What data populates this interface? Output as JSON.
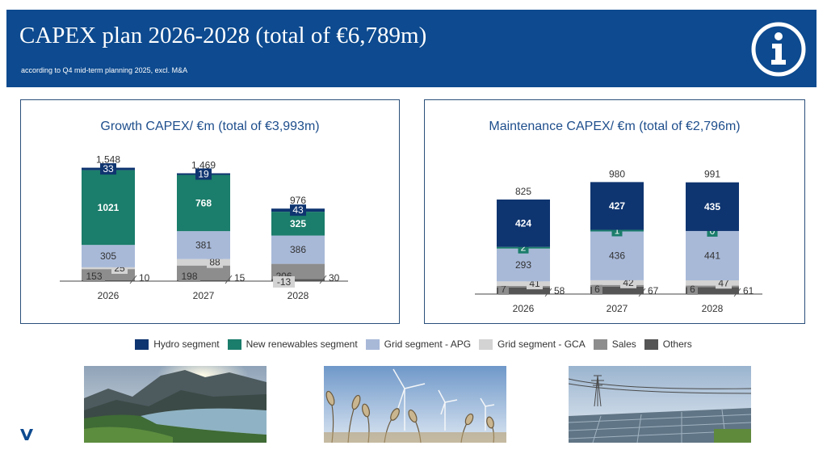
{
  "header": {
    "title": "CAPEX plan 2026-2028 (total of €6,789m)",
    "subtitle": "according to Q4 mid-term planning 2025, excl. M&A"
  },
  "colors": {
    "hydro": "#0f3570",
    "new_renewables": "#1b7d6b",
    "grid_apg": "#a8b9d8",
    "grid_gca": "#d3d3d3",
    "sales": "#8d8d8d",
    "others": "#555555",
    "brand_blue": "#0d4a8f"
  },
  "legend": [
    {
      "label": "Hydro segment",
      "color_key": "hydro"
    },
    {
      "label": "New renewables segment",
      "color_key": "new_renewables"
    },
    {
      "label": "Grid segment - APG",
      "color_key": "grid_apg"
    },
    {
      "label": "Grid segment - GCA",
      "color_key": "grid_gca"
    },
    {
      "label": "Sales",
      "color_key": "sales"
    },
    {
      "label": "Others",
      "color_key": "others"
    }
  ],
  "chart_data": [
    {
      "type": "bar",
      "stacked": true,
      "title": "Growth CAPEX/ €m (total of €3,993m)",
      "categories": [
        "2026",
        "2027",
        "2028"
      ],
      "totals": [
        1548,
        1469,
        976
      ],
      "series": [
        {
          "name": "Others",
          "color_key": "others",
          "values": [
            10,
            15,
            30
          ]
        },
        {
          "name": "Sales",
          "color_key": "sales",
          "values": [
            153,
            198,
            206
          ]
        },
        {
          "name": "Grid segment - GCA",
          "color_key": "grid_gca",
          "values": [
            25,
            88,
            -13
          ]
        },
        {
          "name": "Grid segment - APG",
          "color_key": "grid_apg",
          "values": [
            305,
            381,
            386
          ]
        },
        {
          "name": "New renewables segment",
          "color_key": "new_renewables",
          "values": [
            1021,
            768,
            325
          ]
        },
        {
          "name": "Hydro segment",
          "color_key": "hydro",
          "values": [
            33,
            19,
            43
          ]
        }
      ]
    },
    {
      "type": "bar",
      "stacked": true,
      "title": "Maintenance CAPEX/ €m (total of €2,796m)",
      "categories": [
        "2026",
        "2027",
        "2028"
      ],
      "totals": [
        825,
        980,
        991
      ],
      "series": [
        {
          "name": "Others",
          "color_key": "others",
          "values": [
            58,
            67,
            61
          ]
        },
        {
          "name": "Sales",
          "color_key": "sales",
          "values": [
            7,
            6,
            6
          ]
        },
        {
          "name": "Grid segment - GCA",
          "color_key": "grid_gca",
          "values": [
            41,
            42,
            47
          ]
        },
        {
          "name": "Grid segment - APG",
          "color_key": "grid_apg",
          "values": [
            293,
            436,
            441
          ]
        },
        {
          "name": "New renewables segment",
          "color_key": "new_renewables",
          "values": [
            2,
            1,
            0
          ]
        },
        {
          "name": "Hydro segment",
          "color_key": "hydro",
          "values": [
            424,
            427,
            435
          ]
        }
      ]
    }
  ],
  "photos": [
    {
      "icon": "mountain-reservoir-photo"
    },
    {
      "icon": "wind-turbines-reeds-photo"
    },
    {
      "icon": "solar-park-photo"
    }
  ],
  "logo": {
    "icon": "verbund-v-logo"
  }
}
